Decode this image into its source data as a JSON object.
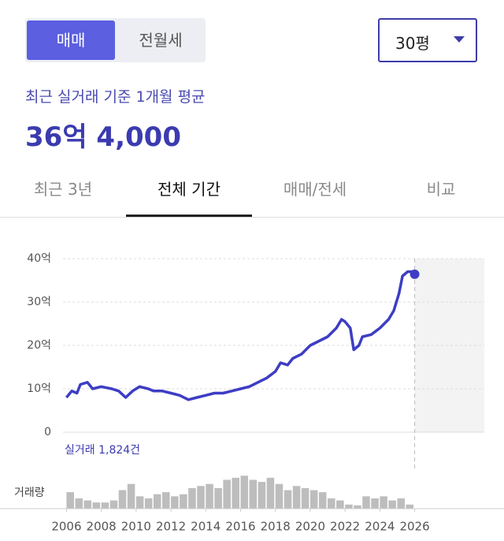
{
  "toggle": {
    "options": [
      "매매",
      "전월세"
    ],
    "active": 0
  },
  "dropdown": {
    "label": "30평"
  },
  "summary": {
    "subtitle": "최근 실거래 기준 1개월 평균",
    "price": "36억 4,000"
  },
  "tabs": {
    "items": [
      "최근 3년",
      "전체 기간",
      "매매/전세",
      "비교"
    ],
    "active": 1
  },
  "chart_data": {
    "type": "line",
    "annotation": "실거래 1,824건",
    "xlim": [
      2005.8,
      2030
    ],
    "xticks": [
      2006,
      2008,
      2010,
      2012,
      2014,
      2016,
      2018,
      2020,
      2022,
      2024,
      2026
    ],
    "ylim": [
      0,
      40
    ],
    "yticks": [
      0,
      {
        "value": 10,
        "label": "10억"
      },
      {
        "value": 20,
        "label": "20억"
      },
      {
        "value": 30,
        "label": "30억"
      },
      {
        "value": 40,
        "label": "40억"
      }
    ],
    "grid": true,
    "series": [
      {
        "color": "#3d3dc4",
        "x": [
          2006.0,
          2006.3,
          2006.6,
          2006.8,
          2007.2,
          2007.5,
          2008.0,
          2008.6,
          2009.0,
          2009.4,
          2009.8,
          2010.2,
          2010.7,
          2011.0,
          2011.5,
          2012.0,
          2012.5,
          2013.0,
          2013.5,
          2014.0,
          2014.5,
          2015.0,
          2015.5,
          2016.0,
          2016.5,
          2017.0,
          2017.5,
          2018.0,
          2018.3,
          2018.7,
          2019.0,
          2019.5,
          2020.0,
          2020.5,
          2021.0,
          2021.5,
          2021.8,
          2022.0,
          2022.3,
          2022.5,
          2022.8,
          2023.0,
          2023.5,
          2024.0,
          2024.5,
          2024.8,
          2025.1,
          2025.3,
          2025.6,
          2025.9,
          2026.0
        ],
        "values": [
          8,
          9.5,
          9,
          11,
          11.5,
          10,
          10.5,
          10,
          9.5,
          8,
          9.5,
          10.5,
          10,
          9.5,
          9.5,
          9,
          8.5,
          7.5,
          8,
          8.5,
          9,
          9,
          9.5,
          10,
          10.5,
          11.5,
          12.5,
          14,
          16,
          15.5,
          17,
          18,
          20,
          21,
          22,
          24,
          26,
          25.5,
          24,
          19,
          20,
          22,
          22.5,
          24,
          26,
          28,
          32,
          36,
          37,
          37,
          36.4
        ]
      }
    ],
    "volume": {
      "label": "거래량",
      "color": "#bdbdbd",
      "ylim": [
        0,
        90
      ],
      "x": [
        2006.0,
        2006.5,
        2007.0,
        2007.5,
        2008.0,
        2008.5,
        2009.0,
        2009.5,
        2010.0,
        2010.5,
        2011.0,
        2011.5,
        2012.0,
        2012.5,
        2013.0,
        2013.5,
        2014.0,
        2014.5,
        2015.0,
        2015.5,
        2016.0,
        2016.5,
        2017.0,
        2017.5,
        2018.0,
        2018.5,
        2019.0,
        2019.5,
        2020.0,
        2020.5,
        2021.0,
        2021.5,
        2022.0,
        2022.5,
        2023.0,
        2023.5,
        2024.0,
        2024.5,
        2025.0,
        2025.5
      ],
      "values": [
        40,
        25,
        20,
        15,
        15,
        20,
        45,
        60,
        30,
        25,
        35,
        40,
        30,
        35,
        50,
        55,
        60,
        50,
        70,
        75,
        80,
        70,
        65,
        75,
        60,
        45,
        55,
        50,
        45,
        40,
        25,
        20,
        10,
        8,
        30,
        25,
        30,
        20,
        25,
        10
      ]
    }
  }
}
